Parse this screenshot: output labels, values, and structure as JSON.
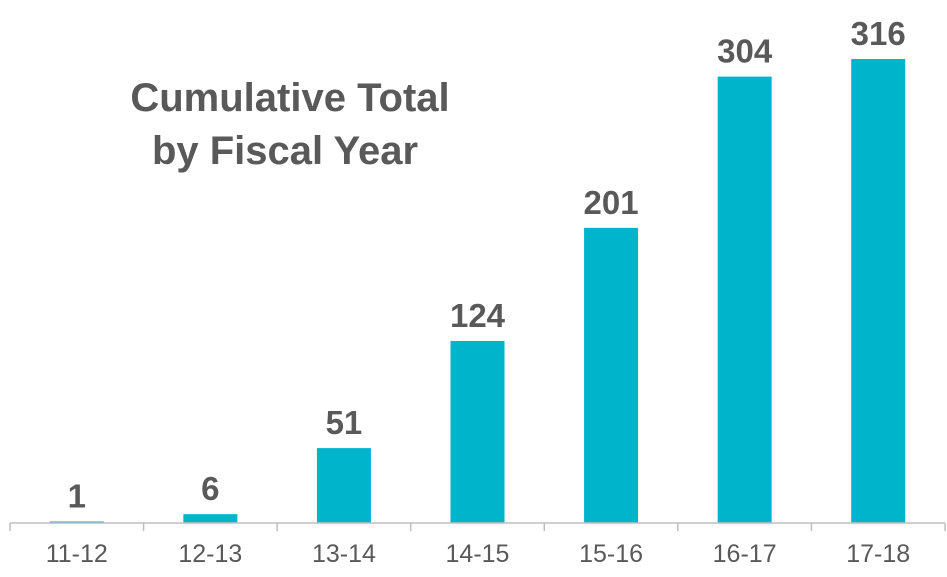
{
  "chart_data": {
    "type": "bar",
    "title_lines": [
      "Cumulative Total",
      "by Fiscal Year"
    ],
    "categories": [
      "11-12",
      "12-13",
      "13-14",
      "14-15",
      "15-16",
      "16-17",
      "17-18"
    ],
    "values": [
      1,
      6,
      51,
      124,
      201,
      304,
      316
    ],
    "data_labels": [
      "1",
      "6",
      "51",
      "124",
      "201",
      "304",
      "316"
    ],
    "ylim": [
      0,
      340
    ],
    "grid": false,
    "legend": "none",
    "bar_color": "#00B4CC",
    "axis_color": "#BFBFBF",
    "text_color": "#595959"
  }
}
